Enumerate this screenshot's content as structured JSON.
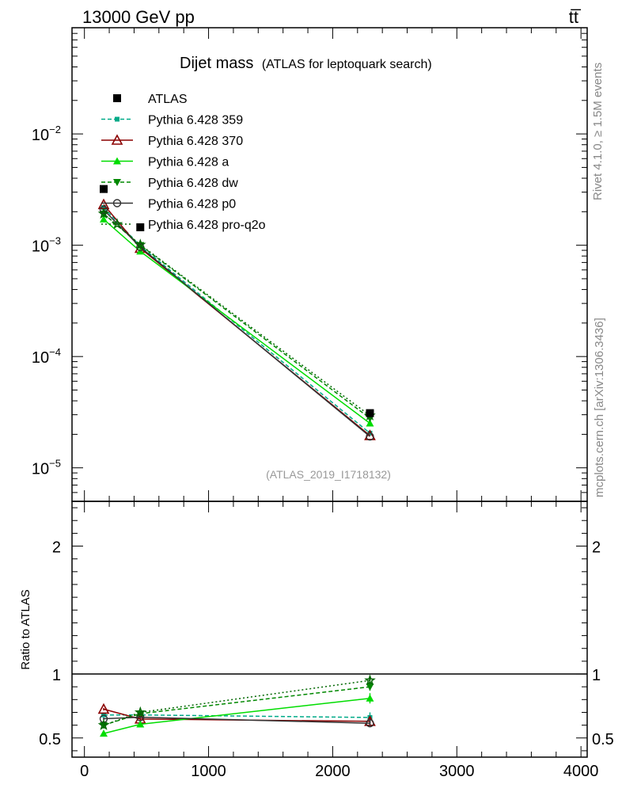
{
  "header": {
    "left": "13000 GeV pp",
    "right": "tt̅"
  },
  "side": {
    "rivet": "Rivet 4.1.0, ≥ 1.5M events",
    "mcplots": "mcplots.cern.ch [arXiv:1306.3436]"
  },
  "chart_data": {
    "type": "line",
    "title": "Dijet mass",
    "subtitle": "(ATLAS for leptoquark search)",
    "analysis_id": "(ATLAS_2019_I1718132)",
    "xlim": [
      -100,
      4050
    ],
    "ylim_main": [
      5e-06,
      0.09
    ],
    "ylim_ratio": [
      0.35,
      2.35
    ],
    "x_ticks": [
      0,
      1000,
      2000,
      3000,
      4000
    ],
    "x_tick_labels": [
      "0",
      "1000",
      "2000",
      "3000",
      "4000"
    ],
    "main_tick_labels": [
      {
        "value": 0.01,
        "base": "10",
        "exp": "−2"
      },
      {
        "value": 0.001,
        "base": "10",
        "exp": "−3"
      },
      {
        "value": 0.0001,
        "base": "10",
        "exp": "−4"
      },
      {
        "value": 1e-05,
        "base": "10",
        "exp": "−5"
      }
    ],
    "ratio_ticks": [
      0.5,
      1,
      2
    ],
    "ratio_tick_labels": [
      "0.5",
      "1",
      "2"
    ],
    "ratio_ylabel": "Ratio to ATLAS",
    "x": [
      155,
      450,
      2300
    ],
    "data": {
      "name": "ATLAS",
      "color": "#000000",
      "values": [
        0.0032,
        0.00145,
        3.1e-05
      ]
    },
    "series": [
      {
        "name": "Pythia 6.428 359",
        "color": "#00aa88",
        "marker": "square-small",
        "dash": "5,3",
        "values": [
          0.00218,
          0.000985,
          2.05e-05
        ],
        "ratio": [
          0.68,
          0.68,
          0.66
        ],
        "ratio_err": [
          0.01,
          0.01,
          0.04
        ]
      },
      {
        "name": "Pythia 6.428 370",
        "color": "#8b0000",
        "marker": "triangle-open",
        "dash": "",
        "values": [
          0.00232,
          0.00094,
          1.95e-05
        ],
        "ratio": [
          0.725,
          0.648,
          0.63
        ],
        "ratio_err": [
          0.01,
          0.01,
          0.03
        ]
      },
      {
        "name": "Pythia 6.428 a",
        "color": "#00dd00",
        "marker": "triangle",
        "dash": "",
        "values": [
          0.00171,
          0.00088,
          2.51e-05
        ],
        "ratio": [
          0.535,
          0.607,
          0.81
        ],
        "ratio_err": [
          0.01,
          0.01,
          0.04
        ]
      },
      {
        "name": "Pythia 6.428 dw",
        "color": "#008800",
        "marker": "triangle-down",
        "dash": "5,3",
        "values": [
          0.00192,
          0.001,
          2.79e-05
        ],
        "ratio": [
          0.6,
          0.69,
          0.9
        ],
        "ratio_err": [
          0.01,
          0.01,
          0.03
        ]
      },
      {
        "name": "Pythia 6.428 p0",
        "color": "#333333",
        "marker": "circle-open",
        "dash": "",
        "values": [
          0.00208,
          0.00096,
          1.91e-05
        ],
        "ratio": [
          0.65,
          0.662,
          0.615
        ],
        "ratio_err": [
          0.01,
          0.01,
          0.03
        ]
      },
      {
        "name": "Pythia 6.428 pro-q2o",
        "color": "#006600",
        "marker": "star",
        "dash": "2,3",
        "values": [
          0.00192,
          0.00101,
          2.95e-05
        ],
        "ratio": [
          0.6,
          0.7,
          0.95
        ],
        "ratio_err": [
          0.01,
          0.01,
          0.03
        ]
      }
    ]
  }
}
